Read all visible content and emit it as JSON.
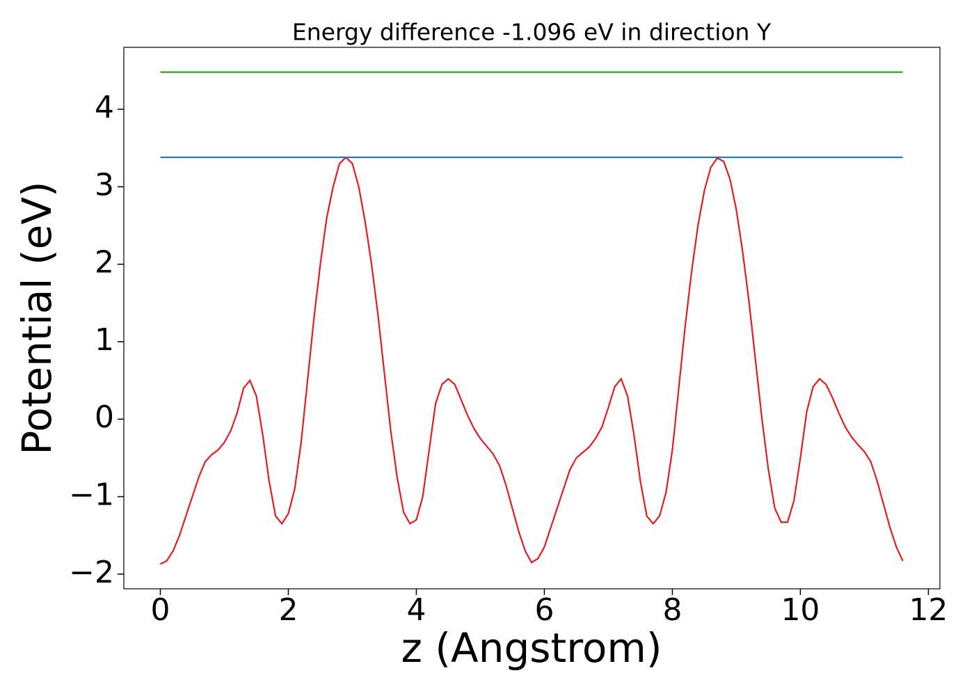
{
  "chart_data": {
    "type": "line",
    "title": "Energy difference -1.096 eV in direction Y",
    "x_label": "z (Angstrom)",
    "y_label": "Potential (eV)",
    "xlim": [
      -0.57,
      12.18
    ],
    "ylim": [
      -2.19,
      4.8
    ],
    "xticks": [
      0,
      2,
      4,
      6,
      8,
      10,
      12
    ],
    "yticks": [
      {
        "value": -2,
        "label": "−2"
      },
      {
        "value": -1,
        "label": "−1"
      },
      0,
      1,
      2,
      3,
      4
    ],
    "series": [
      {
        "color": "#e41a1c",
        "x": [
          0,
          0.1,
          0.2,
          0.3,
          0.4,
          0.5,
          0.6,
          0.7,
          0.8,
          0.9,
          1.0,
          1.1,
          1.2,
          1.3,
          1.4,
          1.5,
          1.6,
          1.7,
          1.8,
          1.9,
          2.0,
          2.1,
          2.2,
          2.3,
          2.4,
          2.5,
          2.6,
          2.7,
          2.8,
          2.9,
          3.0,
          3.1,
          3.2,
          3.3,
          3.4,
          3.5,
          3.6,
          3.7,
          3.8,
          3.9,
          4.0,
          4.1,
          4.2,
          4.3,
          4.4,
          4.5,
          4.6,
          4.7,
          4.8,
          4.9,
          5.0,
          5.1,
          5.2,
          5.3,
          5.4,
          5.5,
          5.6,
          5.7,
          5.8,
          5.9,
          6.0,
          6.1,
          6.2,
          6.3,
          6.4,
          6.5,
          6.6,
          6.7,
          6.8,
          6.9,
          7.0,
          7.1,
          7.2,
          7.3,
          7.4,
          7.5,
          7.6,
          7.7,
          7.8,
          7.9,
          8.0,
          8.1,
          8.2,
          8.3,
          8.4,
          8.5,
          8.6,
          8.7,
          8.8,
          8.9,
          9.0,
          9.1,
          9.2,
          9.3,
          9.4,
          9.5,
          9.6,
          9.7,
          9.8,
          9.9,
          10.0,
          10.1,
          10.2,
          10.3,
          10.4,
          10.5,
          10.6,
          10.7,
          10.8,
          10.9,
          11.0,
          11.1,
          11.2,
          11.3,
          11.4,
          11.5,
          11.6
        ],
        "values": [
          -1.87,
          -1.83,
          -1.7,
          -1.5,
          -1.25,
          -1.0,
          -0.75,
          -0.55,
          -0.46,
          -0.4,
          -0.3,
          -0.15,
          0.08,
          0.4,
          0.5,
          0.3,
          -0.2,
          -0.8,
          -1.25,
          -1.35,
          -1.22,
          -0.9,
          -0.3,
          0.5,
          1.3,
          2.0,
          2.6,
          3.0,
          3.3,
          3.38,
          3.3,
          3.0,
          2.55,
          2.0,
          1.35,
          0.6,
          -0.15,
          -0.75,
          -1.2,
          -1.35,
          -1.3,
          -1.0,
          -0.4,
          0.2,
          0.45,
          0.52,
          0.45,
          0.25,
          0.05,
          -0.12,
          -0.25,
          -0.35,
          -0.45,
          -0.6,
          -0.85,
          -1.15,
          -1.45,
          -1.7,
          -1.85,
          -1.8,
          -1.65,
          -1.4,
          -1.15,
          -0.9,
          -0.65,
          -0.5,
          -0.43,
          -0.36,
          -0.25,
          -0.1,
          0.15,
          0.42,
          0.52,
          0.3,
          -0.2,
          -0.8,
          -1.25,
          -1.35,
          -1.25,
          -0.95,
          -0.4,
          0.4,
          1.2,
          1.9,
          2.5,
          2.95,
          3.25,
          3.37,
          3.33,
          3.1,
          2.7,
          2.15,
          1.5,
          0.75,
          0,
          -0.65,
          -1.15,
          -1.33,
          -1.33,
          -1.05,
          -0.5,
          0.1,
          0.42,
          0.52,
          0.45,
          0.28,
          0.08,
          -0.1,
          -0.23,
          -0.33,
          -0.42,
          -0.55,
          -0.8,
          -1.1,
          -1.4,
          -1.65,
          -1.83
        ]
      },
      {
        "color": "#1f77b4",
        "x": [
          0,
          11.6
        ],
        "values": [
          3.38,
          3.38
        ]
      },
      {
        "color": "#2ca02c",
        "x": [
          0,
          11.6
        ],
        "values": [
          4.48,
          4.48
        ]
      }
    ]
  }
}
